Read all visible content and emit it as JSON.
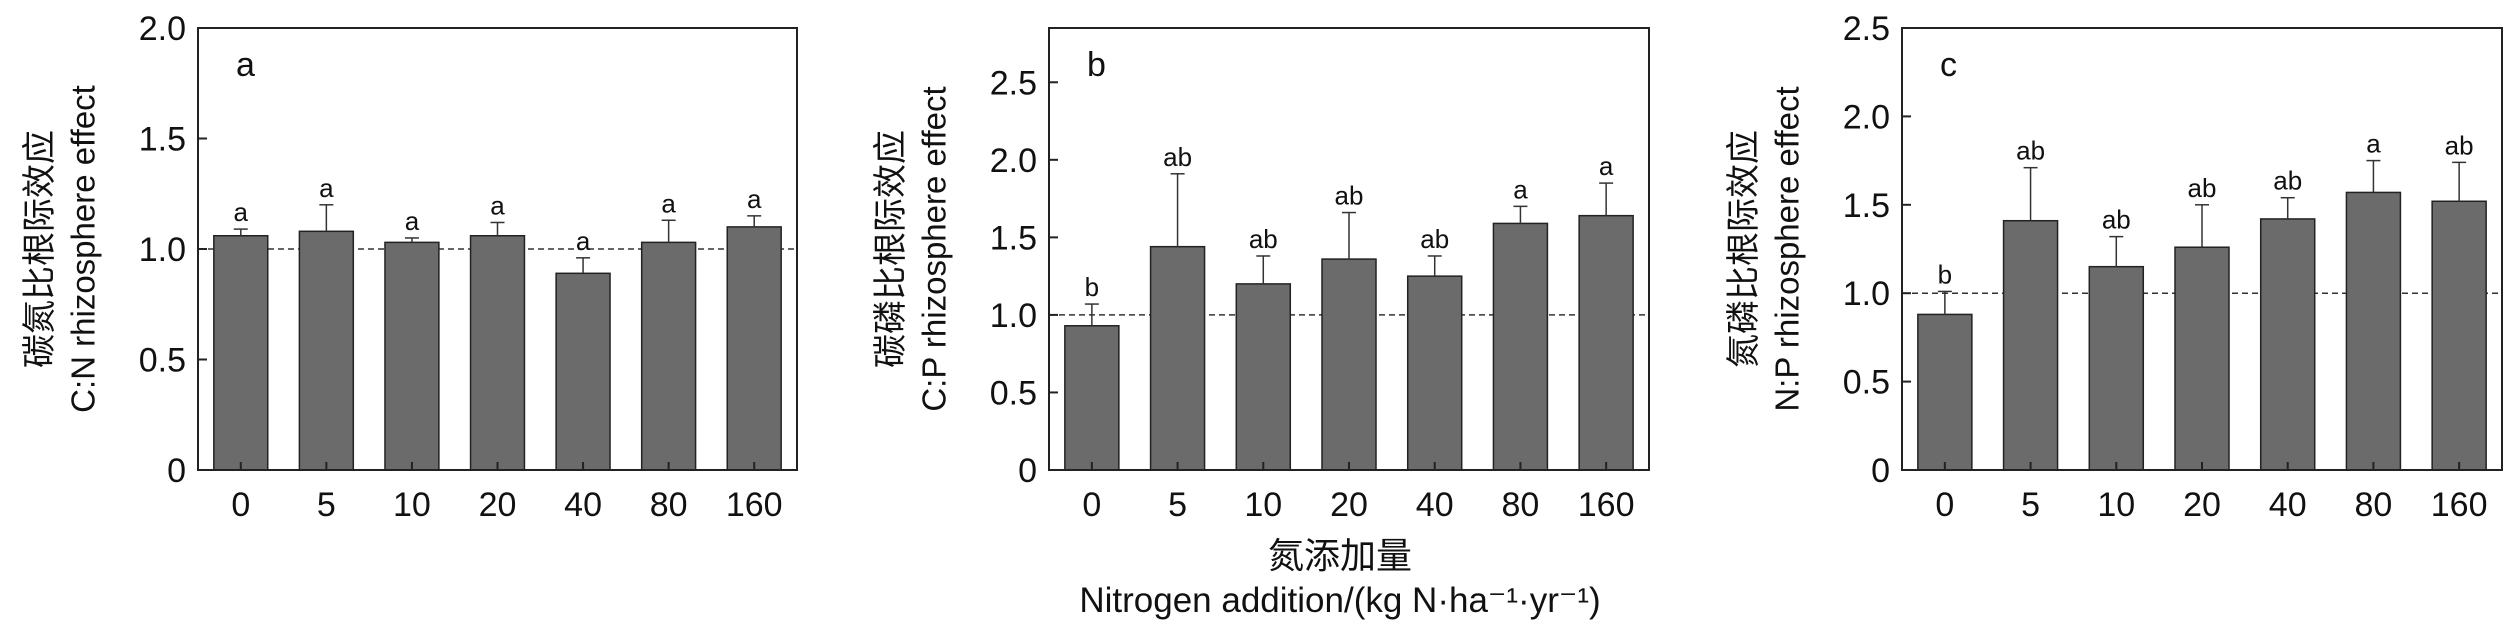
{
  "chart_data": [
    {
      "type": "bar",
      "panel_letter": "a",
      "categories": [
        "0",
        "5",
        "10",
        "20",
        "40",
        "80",
        "160"
      ],
      "values": [
        1.06,
        1.08,
        1.03,
        1.06,
        0.89,
        1.03,
        1.1
      ],
      "errors": [
        0.03,
        0.12,
        0.02,
        0.06,
        0.07,
        0.1,
        0.05
      ],
      "letters": [
        "a",
        "a",
        "a",
        "a",
        "a",
        "a",
        "a"
      ],
      "ylabel_cn": "碳氮比根际效应",
      "ylabel_en": "C:N rhizosphere effect",
      "ylim": [
        0,
        2.0
      ],
      "yticks": [
        0,
        0.5,
        1.0,
        1.5,
        2.0
      ],
      "ytick_labels": [
        "0",
        "0.5",
        "1.0",
        "1.5",
        "2.0"
      ],
      "reference_line": 1.0,
      "bar_color": "#6b6b6b",
      "grid": false
    },
    {
      "type": "bar",
      "panel_letter": "b",
      "categories": [
        "0",
        "5",
        "10",
        "20",
        "40",
        "80",
        "160"
      ],
      "values": [
        0.93,
        1.44,
        1.2,
        1.36,
        1.25,
        1.59,
        1.64
      ],
      "errors": [
        0.14,
        0.47,
        0.18,
        0.3,
        0.13,
        0.11,
        0.21
      ],
      "letters": [
        "b",
        "ab",
        "ab",
        "ab",
        "ab",
        "a",
        "a"
      ],
      "ylabel_cn": "碳磷比根际效应",
      "ylabel_en": "C:P rhizosphere effect",
      "ylim": [
        0,
        2.85
      ],
      "yticks": [
        0,
        0.5,
        1.0,
        1.5,
        2.0,
        2.5
      ],
      "ytick_labels": [
        "0",
        "0.5",
        "1.0",
        "1.5",
        "2.0",
        "2.5"
      ],
      "reference_line": 1.0,
      "bar_color": "#6b6b6b",
      "grid": false
    },
    {
      "type": "bar",
      "panel_letter": "c",
      "categories": [
        "0",
        "5",
        "10",
        "20",
        "40",
        "80",
        "160"
      ],
      "values": [
        0.88,
        1.41,
        1.15,
        1.26,
        1.42,
        1.57,
        1.52
      ],
      "errors": [
        0.13,
        0.3,
        0.17,
        0.24,
        0.12,
        0.18,
        0.22
      ],
      "letters": [
        "b",
        "ab",
        "ab",
        "ab",
        "ab",
        "a",
        "ab"
      ],
      "ylabel_cn": "氮磷比根际效应",
      "ylabel_en": "N:P rhizosphere effect",
      "ylim": [
        0,
        2.5
      ],
      "yticks": [
        0,
        0.5,
        1.0,
        1.5,
        2.0,
        2.5
      ],
      "ytick_labels": [
        "0",
        "0.5",
        "1.0",
        "1.5",
        "2.0",
        "2.5"
      ],
      "reference_line": 1.0,
      "bar_color": "#6b6b6b",
      "grid": false
    }
  ],
  "xlabel_cn": "氮添加量",
  "xlabel_en": "Nitrogen addition/(kg N·ha⁻¹·yr⁻¹)"
}
